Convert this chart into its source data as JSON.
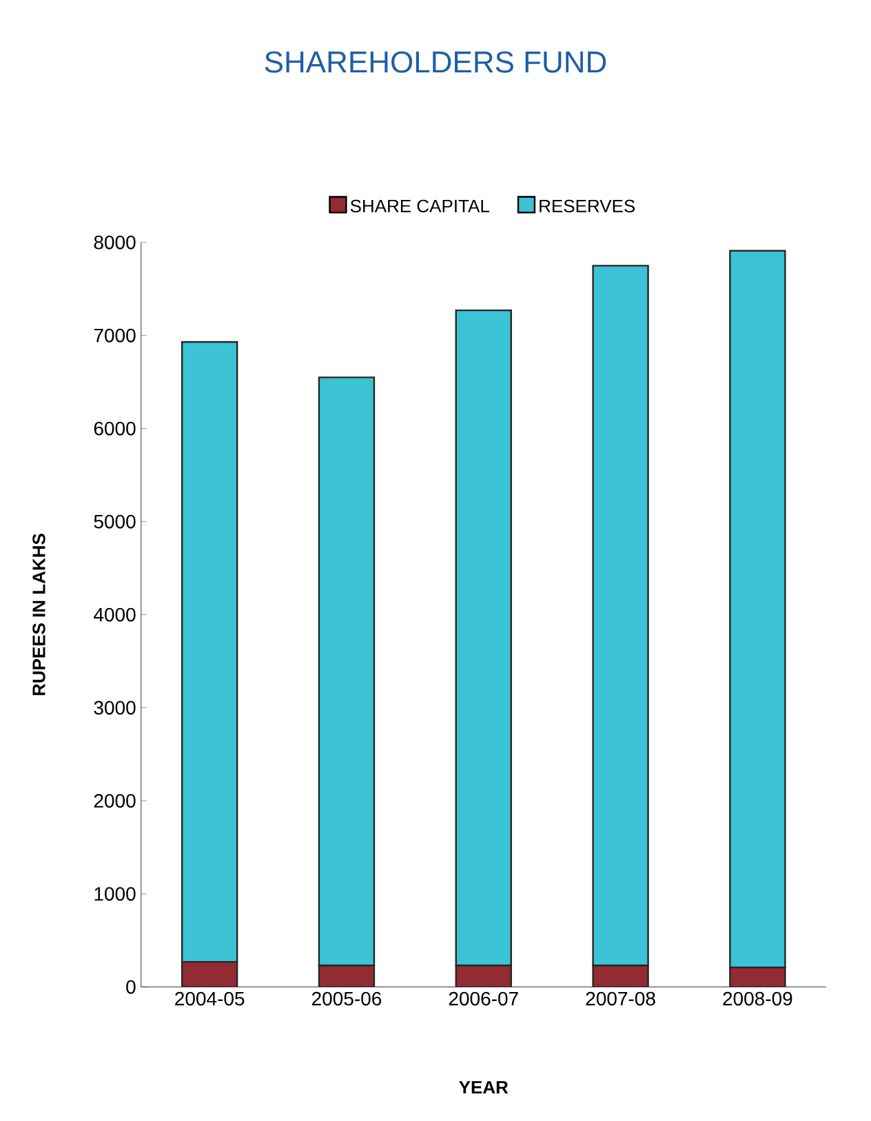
{
  "chart_data": {
    "type": "bar",
    "title": "SHAREHOLDERS FUND",
    "xlabel": "YEAR",
    "ylabel": "RUPEES IN LAKHS",
    "categories": [
      "2004-05",
      "2005-06",
      "2006-07",
      "2007-08",
      "2008-09"
    ],
    "stacked": true,
    "series": [
      {
        "name": "SHARE CAPITAL",
        "color": "#922b33",
        "values": [
          270,
          230,
          230,
          230,
          210
        ]
      },
      {
        "name": "RESERVES",
        "color": "#3bc2d5",
        "values": [
          6660,
          6320,
          7040,
          7520,
          7700
        ]
      }
    ],
    "ylim": [
      0,
      8000
    ],
    "yticks": [
      0,
      1000,
      2000,
      3000,
      4000,
      5000,
      6000,
      7000,
      8000
    ],
    "legend": "top",
    "grid": false
  }
}
